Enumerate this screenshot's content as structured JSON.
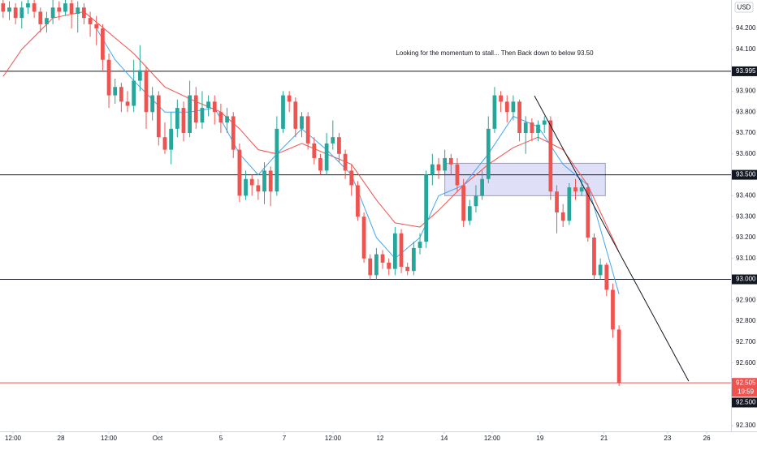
{
  "chart_data": {
    "type": "candlestick",
    "currency": "USD",
    "annotation": "Looking for the momentum to stall... Then Back down to below 93.50",
    "countdown": "19:59",
    "up_color": "#26a69a",
    "down_color": "#ef5350",
    "xlim": [
      -0.5,
      117
    ],
    "xticks": [
      {
        "value": 1.59,
        "label": "12:00"
      },
      {
        "value": 9.29,
        "label": "28"
      },
      {
        "value": 16.99,
        "label": "12:00"
      },
      {
        "value": 24.83,
        "label": "Oct"
      },
      {
        "value": 35.01,
        "label": "5"
      },
      {
        "value": 45.19,
        "label": "7"
      },
      {
        "value": 53.02,
        "label": "12:00"
      },
      {
        "value": 60.6,
        "label": "12"
      },
      {
        "value": 70.9,
        "label": "14"
      },
      {
        "value": 78.6,
        "label": "12:00"
      },
      {
        "value": 86.3,
        "label": "19"
      },
      {
        "value": 96.6,
        "label": "21"
      },
      {
        "value": 106.8,
        "label": "23"
      },
      {
        "value": 113.1,
        "label": "26"
      }
    ],
    "ylim": [
      92.273,
      94.336
    ],
    "yticks": [
      {
        "value": 94.2,
        "label": "94.200"
      },
      {
        "value": 94.1,
        "label": "94.100"
      },
      {
        "value": 94.0,
        "label": "94.000"
      },
      {
        "value": 93.9,
        "label": "93.900"
      },
      {
        "value": 93.8,
        "label": "93.800"
      },
      {
        "value": 93.7,
        "label": "93.700"
      },
      {
        "value": 93.6,
        "label": "93.600"
      },
      {
        "value": 93.4,
        "label": "93.400"
      },
      {
        "value": 93.3,
        "label": "93.300"
      },
      {
        "value": 93.2,
        "label": "93.200"
      },
      {
        "value": 93.1,
        "label": "93.100"
      },
      {
        "value": 92.9,
        "label": "92.900"
      },
      {
        "value": 92.8,
        "label": "92.800"
      },
      {
        "value": 92.7,
        "label": "92.700"
      },
      {
        "value": 92.6,
        "label": "92.600"
      },
      {
        "value": 92.3,
        "label": "92.300"
      }
    ],
    "levels": [
      {
        "value": 93.995,
        "label": "93.995",
        "color": "#131722"
      },
      {
        "value": 93.5,
        "label": "93.500",
        "color": "#131722"
      },
      {
        "value": 93.0,
        "label": "93.000",
        "color": "#131722"
      },
      {
        "value": 92.505,
        "label": "92.505",
        "color": "#ef5350"
      }
    ],
    "price_marker": {
      "value": 92.5,
      "label": "92.500"
    },
    "zone": {
      "x": [
        71.0,
        96.8
      ],
      "y": [
        93.4,
        93.555
      ],
      "color": "#9598e8"
    },
    "trendline": {
      "x": [
        85.4,
        110.2
      ],
      "y": [
        93.878,
        92.513
      ],
      "color": "#131722"
    },
    "moving_averages": [
      {
        "color": "#ef5350",
        "x": [
          0,
          3,
          8,
          13,
          17,
          21,
          26,
          31,
          35,
          38,
          41,
          44,
          48,
          52,
          56,
          60,
          63,
          67,
          70,
          74,
          78,
          82,
          86,
          90,
          94,
          99
        ],
        "values": [
          93.97,
          94.1,
          94.25,
          94.28,
          94.18,
          94.08,
          93.92,
          93.85,
          93.8,
          93.72,
          93.62,
          93.6,
          93.65,
          93.6,
          93.55,
          93.38,
          93.27,
          93.25,
          93.33,
          93.45,
          93.55,
          93.63,
          93.68,
          93.62,
          93.45,
          93.13
        ]
      },
      {
        "color": "#42a5f5",
        "x": [
          15,
          18,
          21,
          26,
          30,
          34,
          38,
          41,
          44,
          48,
          52,
          56,
          60,
          63,
          67,
          70,
          74,
          78,
          82,
          86,
          90,
          94,
          99
        ],
        "values": [
          94.2,
          94.05,
          93.95,
          93.8,
          93.8,
          93.82,
          93.6,
          93.5,
          93.6,
          93.72,
          93.62,
          93.5,
          93.2,
          93.1,
          93.2,
          93.4,
          93.45,
          93.6,
          93.78,
          93.73,
          93.55,
          93.45,
          92.93
        ]
      }
    ],
    "ohlc": [
      [
        94.32,
        94.36,
        94.25,
        94.28
      ],
      [
        94.28,
        94.33,
        94.24,
        94.3
      ],
      [
        94.3,
        94.32,
        94.22,
        94.25
      ],
      [
        94.25,
        94.33,
        94.2,
        94.3
      ],
      [
        94.3,
        94.35,
        94.27,
        94.32
      ],
      [
        94.32,
        94.34,
        94.25,
        94.28
      ],
      [
        94.28,
        94.3,
        94.18,
        94.22
      ],
      [
        94.22,
        94.28,
        94.18,
        94.25
      ],
      [
        94.25,
        94.34,
        94.22,
        94.3
      ],
      [
        94.3,
        94.33,
        94.24,
        94.28
      ],
      [
        94.28,
        94.36,
        94.26,
        94.32
      ],
      [
        94.32,
        94.34,
        94.2,
        94.27
      ],
      [
        94.27,
        94.33,
        94.18,
        94.3
      ],
      [
        94.3,
        94.32,
        94.22,
        94.25
      ],
      [
        94.25,
        94.28,
        94.16,
        94.22
      ],
      [
        94.22,
        94.26,
        94.12,
        94.2
      ],
      [
        94.2,
        94.22,
        94.0,
        94.05
      ],
      [
        94.05,
        94.08,
        93.82,
        93.88
      ],
      [
        93.88,
        93.96,
        93.84,
        93.92
      ],
      [
        93.92,
        93.94,
        93.8,
        93.85
      ],
      [
        93.85,
        93.9,
        93.8,
        93.83
      ],
      [
        93.83,
        94.05,
        93.8,
        93.95
      ],
      [
        93.95,
        94.12,
        93.9,
        94.0
      ],
      [
        94.0,
        94.02,
        93.72,
        93.8
      ],
      [
        93.8,
        93.92,
        93.76,
        93.88
      ],
      [
        93.88,
        93.9,
        93.64,
        93.68
      ],
      [
        93.68,
        93.75,
        93.6,
        93.62
      ],
      [
        93.62,
        93.8,
        93.55,
        93.72
      ],
      [
        93.72,
        93.86,
        93.68,
        93.82
      ],
      [
        93.82,
        93.85,
        93.66,
        93.7
      ],
      [
        93.7,
        93.95,
        93.68,
        93.88
      ],
      [
        93.88,
        93.92,
        93.72,
        93.75
      ],
      [
        93.75,
        93.9,
        93.72,
        93.82
      ],
      [
        93.82,
        93.88,
        93.78,
        93.85
      ],
      [
        93.85,
        93.88,
        93.74,
        93.8
      ],
      [
        93.8,
        93.84,
        93.7,
        93.75
      ],
      [
        93.75,
        93.82,
        93.7,
        93.78
      ],
      [
        93.78,
        93.8,
        93.58,
        93.62
      ],
      [
        93.62,
        93.65,
        93.37,
        93.4
      ],
      [
        93.4,
        93.52,
        93.38,
        93.48
      ],
      [
        93.48,
        93.5,
        93.4,
        93.45
      ],
      [
        93.45,
        93.48,
        93.38,
        93.42
      ],
      [
        93.42,
        93.56,
        93.36,
        93.52
      ],
      [
        93.52,
        93.54,
        93.35,
        93.42
      ],
      [
        93.42,
        93.78,
        93.4,
        93.72
      ],
      [
        93.72,
        93.9,
        93.7,
        93.88
      ],
      [
        93.88,
        93.9,
        93.8,
        93.85
      ],
      [
        93.85,
        93.87,
        93.68,
        93.72
      ],
      [
        93.72,
        93.8,
        93.68,
        93.78
      ],
      [
        93.78,
        93.8,
        93.62,
        93.65
      ],
      [
        93.65,
        93.68,
        93.55,
        93.58
      ],
      [
        93.58,
        93.6,
        93.5,
        93.52
      ],
      [
        93.52,
        93.7,
        93.5,
        93.65
      ],
      [
        93.65,
        93.76,
        93.62,
        93.68
      ],
      [
        93.68,
        93.7,
        93.56,
        93.6
      ],
      [
        93.6,
        93.62,
        93.48,
        93.52
      ],
      [
        93.52,
        93.55,
        93.4,
        93.45
      ],
      [
        93.45,
        93.47,
        93.28,
        93.3
      ],
      [
        93.3,
        93.32,
        93.08,
        93.1
      ],
      [
        93.1,
        93.12,
        93.0,
        93.02
      ],
      [
        93.02,
        93.15,
        93.0,
        93.12
      ],
      [
        93.12,
        93.14,
        93.05,
        93.08
      ],
      [
        93.08,
        93.1,
        93.02,
        93.05
      ],
      [
        93.05,
        93.25,
        93.02,
        93.22
      ],
      [
        93.22,
        93.24,
        93.03,
        93.06
      ],
      [
        93.06,
        93.08,
        93.02,
        93.04
      ],
      [
        93.04,
        93.18,
        93.02,
        93.15
      ],
      [
        93.15,
        93.22,
        93.12,
        93.18
      ],
      [
        93.18,
        93.52,
        93.15,
        93.5
      ],
      [
        93.5,
        93.6,
        93.45,
        93.55
      ],
      [
        93.55,
        93.58,
        93.48,
        93.52
      ],
      [
        93.52,
        93.62,
        93.5,
        93.58
      ],
      [
        93.58,
        93.6,
        93.5,
        93.55
      ],
      [
        93.55,
        93.58,
        93.42,
        93.45
      ],
      [
        93.45,
        93.48,
        93.25,
        93.28
      ],
      [
        93.28,
        93.38,
        93.26,
        93.35
      ],
      [
        93.35,
        93.45,
        93.32,
        93.4
      ],
      [
        93.4,
        93.52,
        93.38,
        93.48
      ],
      [
        93.48,
        93.78,
        93.46,
        93.72
      ],
      [
        93.72,
        93.92,
        93.7,
        93.88
      ],
      [
        93.88,
        93.9,
        93.8,
        93.85
      ],
      [
        93.85,
        93.88,
        93.75,
        93.8
      ],
      [
        93.8,
        93.88,
        93.76,
        93.85
      ],
      [
        93.85,
        93.86,
        93.66,
        93.7
      ],
      [
        93.7,
        93.78,
        93.6,
        93.75
      ],
      [
        93.75,
        93.77,
        93.66,
        93.7
      ],
      [
        93.7,
        93.76,
        93.66,
        93.74
      ],
      [
        93.74,
        93.78,
        93.7,
        93.76
      ],
      [
        93.76,
        93.78,
        93.38,
        93.42
      ],
      [
        93.42,
        93.45,
        93.22,
        93.32
      ],
      [
        93.32,
        93.36,
        93.25,
        93.28
      ],
      [
        93.28,
        93.46,
        93.26,
        93.44
      ],
      [
        93.44,
        93.48,
        93.38,
        93.42
      ],
      [
        93.42,
        93.48,
        93.4,
        93.44
      ],
      [
        93.44,
        93.46,
        93.18,
        93.2
      ],
      [
        93.2,
        93.22,
        93.0,
        93.02
      ],
      [
        93.02,
        93.1,
        93.0,
        93.07
      ],
      [
        93.07,
        93.08,
        92.92,
        92.95
      ],
      [
        92.95,
        92.98,
        92.72,
        92.76
      ],
      [
        92.76,
        92.78,
        92.49,
        92.505
      ]
    ]
  }
}
